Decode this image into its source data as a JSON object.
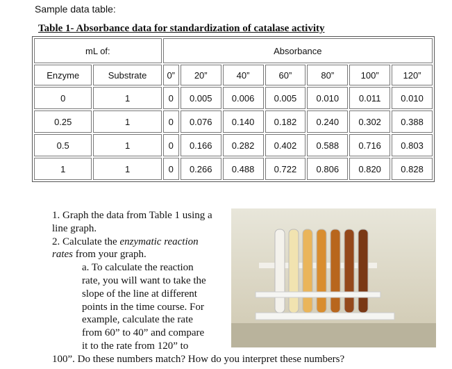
{
  "intro": "Sample data table:",
  "table": {
    "title": "Table 1- Absorbance data for standardization of catalase activity",
    "group_headers": [
      "mL of:",
      "Absorbance"
    ],
    "columns": [
      "Enzyme",
      "Substrate",
      "0”",
      "20”",
      "40”",
      "60”",
      "80”",
      "100”",
      "120”"
    ],
    "rows": [
      [
        "0",
        "1",
        "0",
        "0.005",
        "0.006",
        "0.005",
        "0.010",
        "0.011",
        "0.010"
      ],
      [
        "0.25",
        "1",
        "0",
        "0.076",
        "0.140",
        "0.182",
        "0.240",
        "0.302",
        "0.388"
      ],
      [
        "0.5",
        "1",
        "0",
        "0.166",
        "0.282",
        "0.402",
        "0.588",
        "0.716",
        "0.803"
      ],
      [
        "1",
        "1",
        "0",
        "0.266",
        "0.488",
        "0.722",
        "0.806",
        "0.820",
        "0.828"
      ]
    ]
  },
  "instructions": [
    {
      "segments": [
        {
          "text": "1. Graph the data from Table 1 using a"
        }
      ]
    },
    {
      "segments": [
        {
          "text": "line graph."
        }
      ]
    },
    {
      "segments": [
        {
          "text": "2. Calculate the "
        },
        {
          "text": "enzymatic reaction",
          "italic": true
        }
      ]
    },
    {
      "segments": [
        {
          "text": "rates",
          "italic": true
        },
        {
          "text": " from your graph."
        }
      ]
    },
    {
      "segments": [
        {
          "text": "a. To calculate the reaction"
        }
      ]
    },
    {
      "segments": [
        {
          "text": "rate, you will want to take the"
        }
      ]
    },
    {
      "segments": [
        {
          "text": "slope of the line at different"
        }
      ]
    },
    {
      "segments": [
        {
          "text": "points in the time course. For"
        }
      ]
    },
    {
      "segments": [
        {
          "text": "example, calculate the rate"
        }
      ]
    },
    {
      "segments": [
        {
          "text": "from 60” to 40” and compare"
        }
      ]
    },
    {
      "segments": [
        {
          "text": "it to the rate from 120” to"
        }
      ]
    },
    {
      "segments": [
        {
          "text": "100”. Do these numbers match? How do you interpret these numbers?"
        }
      ]
    }
  ]
}
